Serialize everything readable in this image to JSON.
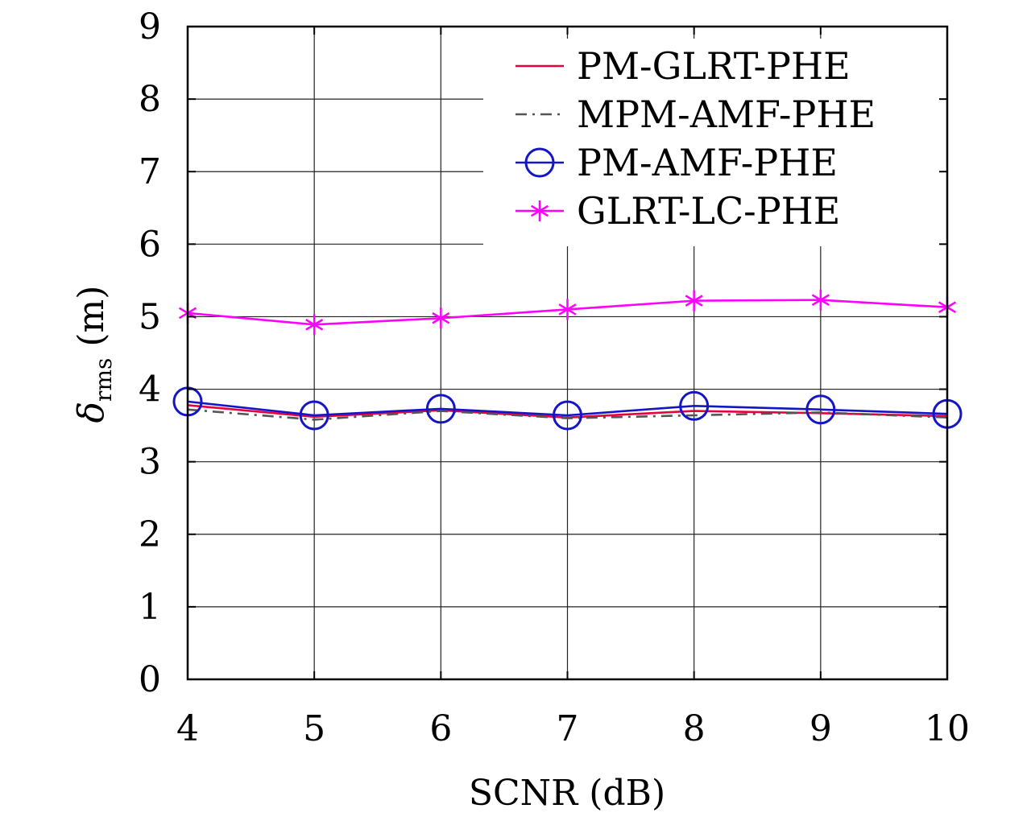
{
  "chart_data": {
    "type": "line",
    "xlabel": "SCNR (dB)",
    "ylabel": {
      "symbol": "δ",
      "subscript": "rms",
      "unit": "(m)"
    },
    "x": [
      4,
      5,
      6,
      7,
      8,
      9,
      10
    ],
    "xlim": [
      4,
      10
    ],
    "ylim": [
      0,
      9
    ],
    "xticks": [
      "4",
      "5",
      "6",
      "7",
      "8",
      "9",
      "10"
    ],
    "yticks": [
      "0",
      "1",
      "2",
      "3",
      "4",
      "5",
      "6",
      "7",
      "8",
      "9"
    ],
    "grid": true,
    "legend_position": "top-right",
    "series": [
      {
        "name": "PM-GLRT-PHE",
        "values": [
          3.78,
          3.62,
          3.71,
          3.61,
          3.7,
          3.67,
          3.63
        ],
        "color": "#e8003c",
        "dash": "solid",
        "marker": "none"
      },
      {
        "name": "MPM-AMF-PHE",
        "values": [
          3.72,
          3.58,
          3.7,
          3.6,
          3.64,
          3.68,
          3.61
        ],
        "color": "#555555",
        "dash": "dashdot",
        "marker": "none"
      },
      {
        "name": "PM-AMF-PHE",
        "values": [
          3.83,
          3.64,
          3.73,
          3.64,
          3.77,
          3.72,
          3.66
        ],
        "color": "#1515c8",
        "dash": "solid",
        "marker": "circle"
      },
      {
        "name": "GLRT-LC-PHE",
        "values": [
          5.05,
          4.89,
          4.98,
          5.1,
          5.22,
          5.23,
          5.13
        ],
        "color": "#ff00ff",
        "dash": "solid",
        "marker": "star"
      }
    ]
  }
}
